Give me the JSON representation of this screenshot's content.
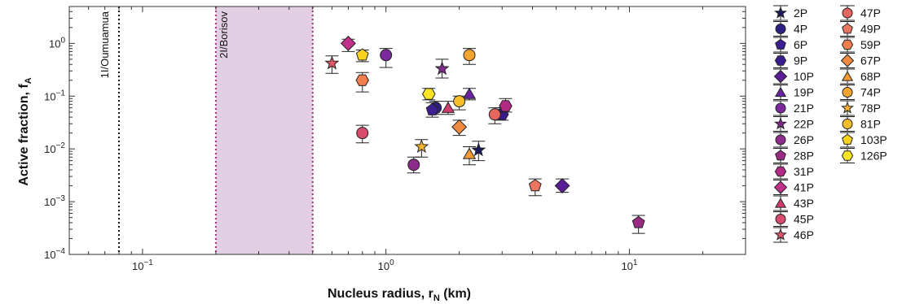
{
  "chart_data": {
    "type": "scatter",
    "xscale": "log",
    "yscale": "log",
    "xlim": [
      0.05,
      30
    ],
    "ylim": [
      0.0001,
      5
    ],
    "grid": false,
    "xlabel": "Nucleus radius, r",
    "xlabel_sub": "N",
    "xlabel_unit": " (km)",
    "ylabel": "Active fraction, f",
    "ylabel_sub": "A",
    "xticks": [
      {
        "base": "10",
        "exp": "−1",
        "value": 0.1
      },
      {
        "base": "10",
        "exp": "0",
        "value": 1
      },
      {
        "base": "10",
        "exp": "1",
        "value": 10
      }
    ],
    "yticks": [
      {
        "base": "10",
        "exp": "−4",
        "value": 0.0001
      },
      {
        "base": "10",
        "exp": "−3",
        "value": 0.001
      },
      {
        "base": "10",
        "exp": "−2",
        "value": 0.01
      },
      {
        "base": "10",
        "exp": "−1",
        "value": 0.1
      },
      {
        "base": "10",
        "exp": "0",
        "value": 1
      }
    ],
    "reference_lines": [
      {
        "label": "1I/Oumuamua",
        "x": 0.08,
        "color": "#111111"
      }
    ],
    "reference_bands": [
      {
        "label": "2I/Borisov",
        "x_range": [
          0.2,
          0.5
        ],
        "fill": "#e2cfe4",
        "edge": "#a0307a"
      }
    ],
    "legend_position": "right",
    "legend_columns": 2,
    "series": [
      {
        "name": "2P",
        "marker": "star",
        "color": "#1d1a62",
        "points": [
          {
            "x": 2.4,
            "y": 0.0095,
            "err": [
              0.006,
              0.014
            ]
          }
        ]
      },
      {
        "name": "4P",
        "marker": "circle",
        "color": "#2c2183",
        "points": [
          {
            "x": 1.6,
            "y": 0.06,
            "err": [
              0.045,
              0.08
            ]
          }
        ]
      },
      {
        "name": "6P",
        "marker": "pentagon",
        "color": "#3d1f92",
        "points": [
          {
            "x": 1.55,
            "y": 0.055,
            "err": [
              0.04,
              0.075
            ]
          }
        ]
      },
      {
        "name": "9P",
        "marker": "hexagon",
        "color": "#3a1d8c",
        "points": [
          {
            "x": 3.0,
            "y": 0.045,
            "err": [
              0.035,
              0.06
            ]
          }
        ]
      },
      {
        "name": "10P",
        "marker": "diamond",
        "color": "#5a1f96",
        "points": [
          {
            "x": 5.3,
            "y": 0.002,
            "err": [
              0.0015,
              0.0027
            ]
          }
        ]
      },
      {
        "name": "19P",
        "marker": "triangle",
        "color": "#6a22a0",
        "points": [
          {
            "x": 2.2,
            "y": 0.11,
            "err": [
              0.085,
              0.14
            ]
          }
        ]
      },
      {
        "name": "21P",
        "marker": "circle",
        "color": "#7a2a9c",
        "points": [
          {
            "x": 1.0,
            "y": 0.6,
            "err": [
              0.35,
              0.8
            ]
          }
        ]
      },
      {
        "name": "22P",
        "marker": "star",
        "color": "#812a8e",
        "points": [
          {
            "x": 1.7,
            "y": 0.33,
            "err": [
              0.22,
              0.5
            ]
          }
        ]
      },
      {
        "name": "26P",
        "marker": "circle",
        "color": "#8c2b8a",
        "points": [
          {
            "x": 1.3,
            "y": 0.005,
            "err": [
              0.0035,
              0.007
            ]
          }
        ]
      },
      {
        "name": "28P",
        "marker": "pentagon",
        "color": "#982c82",
        "points": [
          {
            "x": 10.9,
            "y": 0.0004,
            "err": [
              0.00025,
              0.00055
            ]
          }
        ]
      },
      {
        "name": "31P",
        "marker": "hexagon",
        "color": "#b02a86",
        "points": [
          {
            "x": 3.1,
            "y": 0.065,
            "err": [
              0.05,
              0.09
            ]
          }
        ]
      },
      {
        "name": "41P",
        "marker": "diamond",
        "color": "#c0318a",
        "points": [
          {
            "x": 0.7,
            "y": 1.0,
            "err": [
              0.7,
              1.2
            ]
          }
        ]
      },
      {
        "name": "43P",
        "marker": "triangle",
        "color": "#cf3b6c",
        "points": [
          {
            "x": 1.8,
            "y": 0.06,
            "err": [
              0.045,
              0.08
            ]
          }
        ]
      },
      {
        "name": "45P",
        "marker": "circle",
        "color": "#d84b6c",
        "points": [
          {
            "x": 0.8,
            "y": 0.02,
            "err": [
              0.013,
              0.028
            ]
          }
        ]
      },
      {
        "name": "46P",
        "marker": "star",
        "color": "#e15668",
        "points": [
          {
            "x": 0.6,
            "y": 0.42,
            "err": [
              0.27,
              0.58
            ]
          }
        ]
      },
      {
        "name": "47P",
        "marker": "circle",
        "color": "#e6675e",
        "points": [
          {
            "x": 2.8,
            "y": 0.045,
            "err": [
              0.03,
              0.06
            ]
          }
        ]
      },
      {
        "name": "49P",
        "marker": "pentagon",
        "color": "#ea7560",
        "points": [
          {
            "x": 4.1,
            "y": 0.002,
            "err": [
              0.0013,
              0.0027
            ]
          }
        ]
      },
      {
        "name": "59P",
        "marker": "hexagon",
        "color": "#ef7f4e",
        "points": [
          {
            "x": 0.8,
            "y": 0.2,
            "err": [
              0.12,
              0.28
            ]
          }
        ]
      },
      {
        "name": "67P",
        "marker": "diamond",
        "color": "#f08a3e",
        "points": [
          {
            "x": 2.0,
            "y": 0.026,
            "err": [
              0.018,
              0.035
            ]
          }
        ]
      },
      {
        "name": "68P",
        "marker": "triangle",
        "color": "#f49a36",
        "points": [
          {
            "x": 2.2,
            "y": 0.008,
            "err": [
              0.005,
              0.011
            ]
          }
        ]
      },
      {
        "name": "74P",
        "marker": "circle",
        "color": "#f6a431",
        "points": [
          {
            "x": 2.2,
            "y": 0.6,
            "err": [
              0.4,
              0.8
            ]
          }
        ]
      },
      {
        "name": "78P",
        "marker": "star",
        "color": "#f2b42f",
        "points": [
          {
            "x": 1.4,
            "y": 0.011,
            "err": [
              0.007,
              0.015
            ]
          }
        ]
      },
      {
        "name": "81P",
        "marker": "circle",
        "color": "#f6be2a",
        "points": [
          {
            "x": 2.0,
            "y": 0.08,
            "err": [
              0.055,
              0.1
            ]
          }
        ]
      },
      {
        "name": "103P",
        "marker": "pentagon",
        "color": "#f7d21e",
        "points": [
          {
            "x": 0.8,
            "y": 0.6,
            "err": [
              0.45,
              0.75
            ]
          }
        ]
      },
      {
        "name": "126P",
        "marker": "hexagon",
        "color": "#f8e425",
        "points": [
          {
            "x": 1.5,
            "y": 0.11,
            "err": [
              0.085,
              0.14
            ]
          }
        ]
      }
    ]
  }
}
